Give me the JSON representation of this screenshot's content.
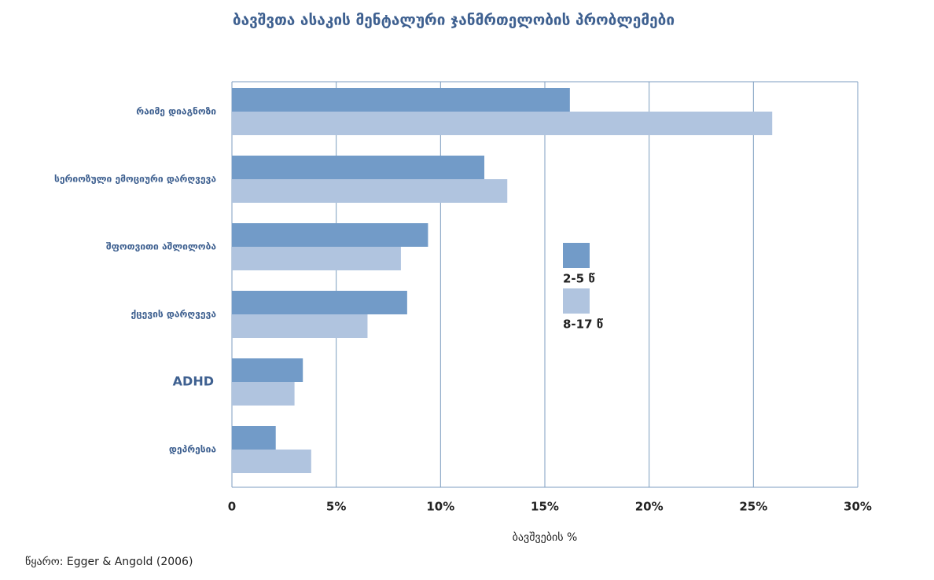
{
  "chart_data": {
    "type": "hbar",
    "title": "ბავშვთა ასაკის მენტალური ჯანმრთელობის პრობლემები",
    "x_label": "ბავშვების %",
    "source": "წყარო: Egger & Angold (2006)",
    "categories": [
      "რაიმე დიაგნოზი",
      "სერიოზული ემოციური დარღვევა",
      "შფოთვითი აშლილობა",
      "ქცევის დარღვევა",
      "ADHD",
      "დეპრესია"
    ],
    "series": [
      {
        "name": "2-5 წ",
        "color": "#729bc8",
        "values": [
          16.2,
          12.1,
          9.4,
          8.4,
          3.4,
          2.1
        ]
      },
      {
        "name": "8-17 წ",
        "color": "#b0c4df",
        "values": [
          25.9,
          13.2,
          8.1,
          6.5,
          3.0,
          3.8
        ]
      }
    ],
    "xlim": [
      0,
      30
    ],
    "xticks": [
      0,
      {
        "value": 5,
        "label": "5%"
      },
      {
        "value": 10,
        "label": "10%"
      },
      {
        "value": 15,
        "label": "15%"
      },
      {
        "value": 20,
        "label": "20%"
      },
      {
        "value": 25,
        "label": "25%"
      },
      {
        "value": 30,
        "label": "30%"
      }
    ],
    "grid": true
  }
}
